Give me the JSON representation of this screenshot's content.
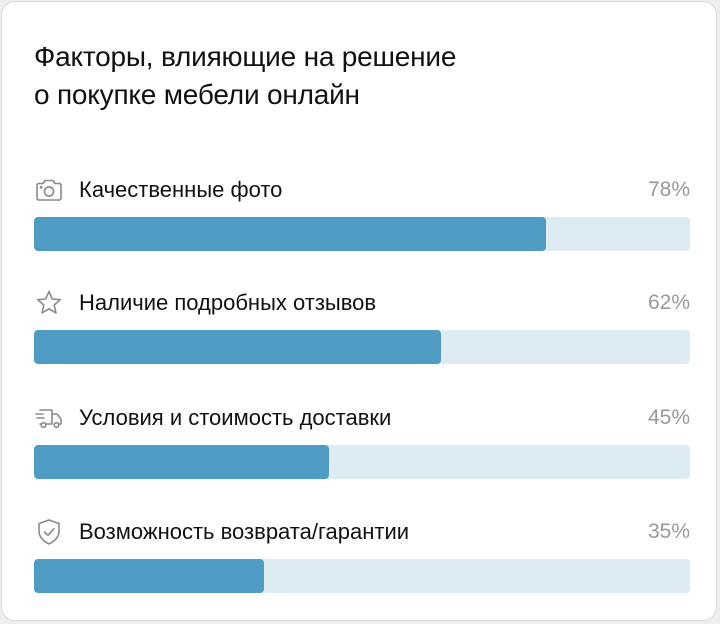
{
  "title_line1": "Факторы, влияющие на решение",
  "title_line2": "о покупке мебели онлайн",
  "colors": {
    "fill": "#4e9cc3",
    "track": "#ddebf3",
    "label": "#111111",
    "percent": "#999999"
  },
  "chart_data": {
    "type": "bar",
    "orientation": "horizontal",
    "categories": [
      "Качественные фото",
      "Наличие подробных отзывов",
      "Условия и стоимость доставки",
      "Возможность возврата/гарантии"
    ],
    "values": [
      78,
      62,
      45,
      35
    ],
    "value_labels": [
      "78%",
      "62%",
      "45%",
      "35%"
    ],
    "icons": [
      "camera-icon",
      "star-icon",
      "truck-icon",
      "shield-check-icon"
    ],
    "xlim": [
      0,
      100
    ],
    "grid": false
  }
}
